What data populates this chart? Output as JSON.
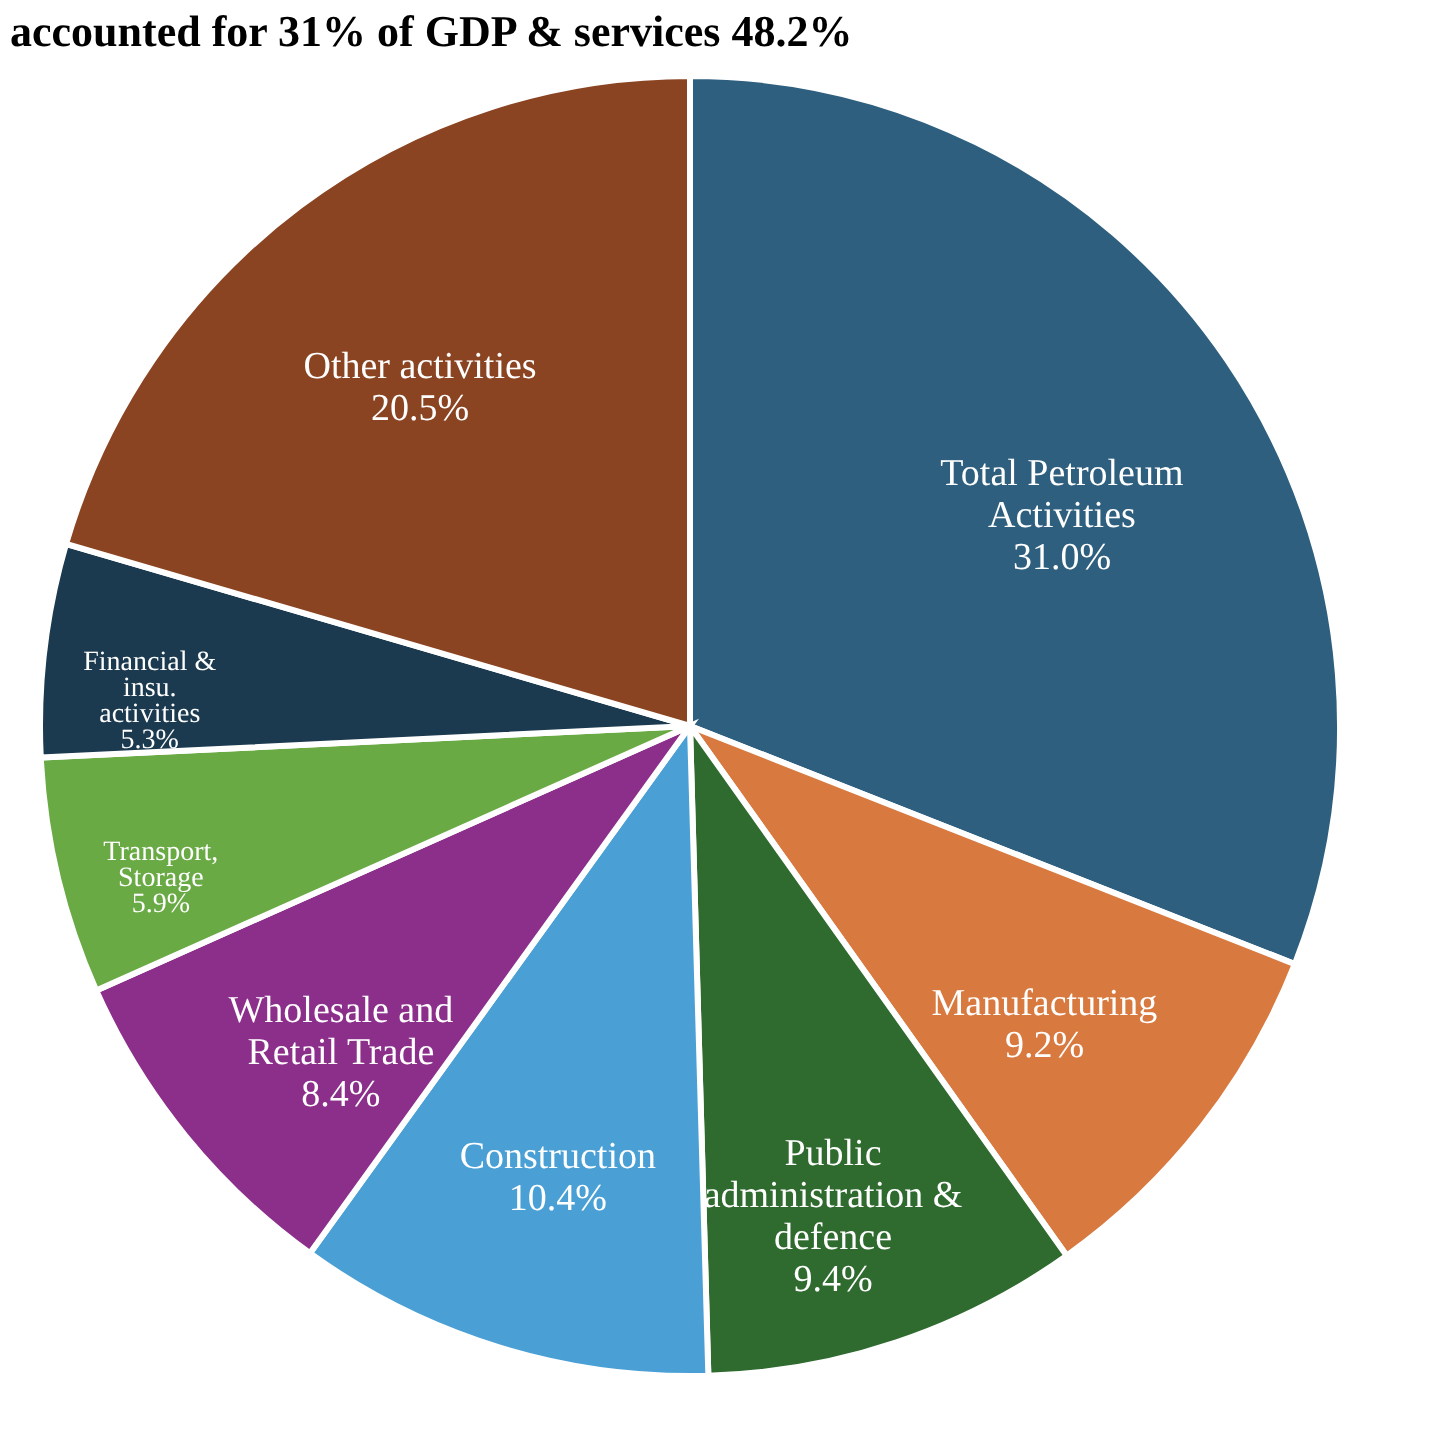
{
  "chart_data": {
    "type": "pie",
    "title": "accounted for 31% of GDP & services 48.2%",
    "categories": [
      "Total Petroleum\nActivities",
      "Manufacturing",
      "Public\nadministration &\ndefence",
      "Construction",
      "Wholesale and\nRetail Trade",
      "Transport,\nStorage",
      "Financial &\ninsu.\nactivities",
      "Other activities"
    ],
    "values": [
      31.0,
      9.2,
      9.4,
      10.4,
      8.4,
      5.9,
      5.3,
      20.5
    ],
    "value_labels": [
      "31.0%",
      "9.2%",
      "9.4%",
      "10.4%",
      "8.4%",
      "5.9%",
      "5.3%",
      "20.5%"
    ],
    "colors": [
      "#2e5f7f",
      "#d8793f",
      "#2f6a2f",
      "#4aa0d5",
      "#8b2f8b",
      "#6aaa45",
      "#1b3a4f",
      "#8b4422"
    ],
    "legend": false
  }
}
